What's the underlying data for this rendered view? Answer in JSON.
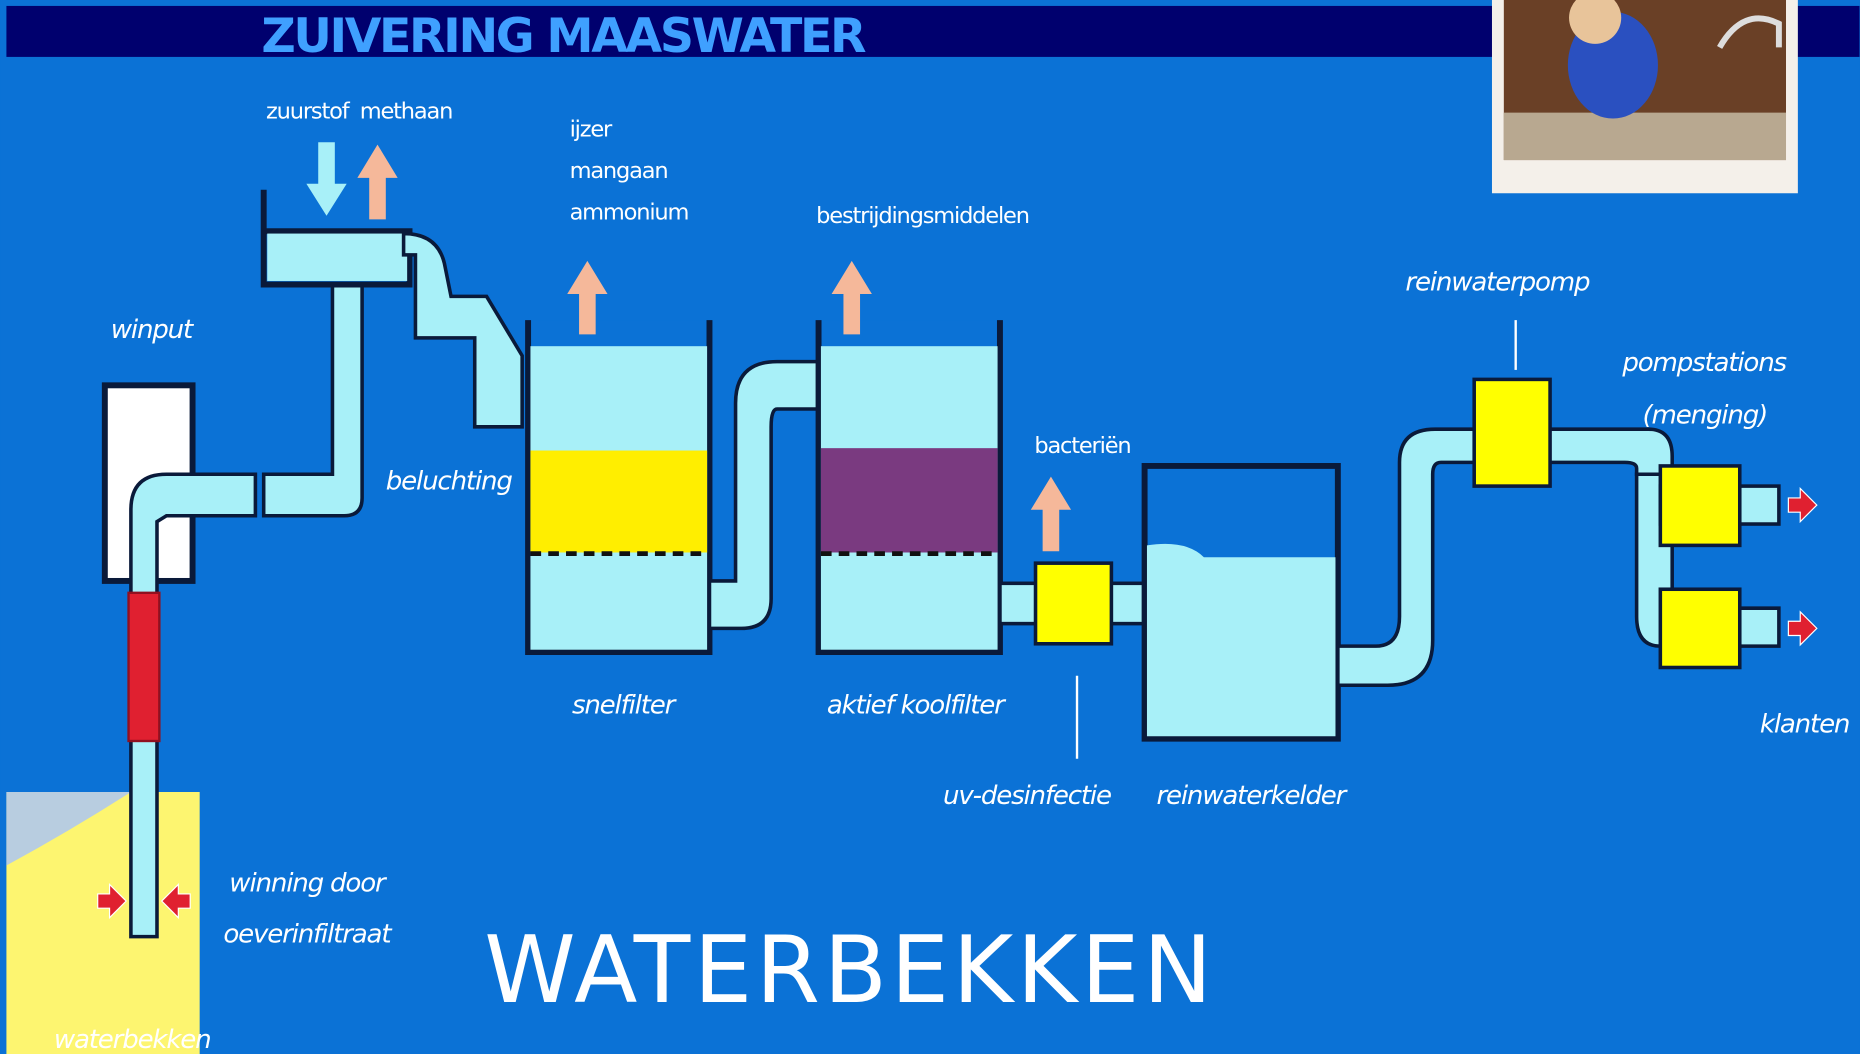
{
  "title": "ZUIVERING MAASWATER",
  "heading": "WATERBEKKEN",
  "labels": {
    "zuurstof": "zuurstof",
    "methaan": "methaan",
    "ijzer": "ijzer",
    "mangaan": "mangaan",
    "ammonium": "ammonium",
    "bestrijdingsmiddelen": "bestrijdingsmiddelen",
    "winput": "winput",
    "beluchting": "beluchting",
    "snelfilter": "snelfilter",
    "koolfilter": "aktief koolfilter",
    "bacterien": "bacteriën",
    "uv": "uv-desinfectie",
    "reinwaterkelder": "reinwaterkelder",
    "reinwaterpomp": "reinwaterpomp",
    "pompstations": "pompstations",
    "menging": "(menging)",
    "klanten": "klanten",
    "winning1": "winning door",
    "winning2": "oeverinfiltraat",
    "waterbekken": "waterbekken"
  }
}
